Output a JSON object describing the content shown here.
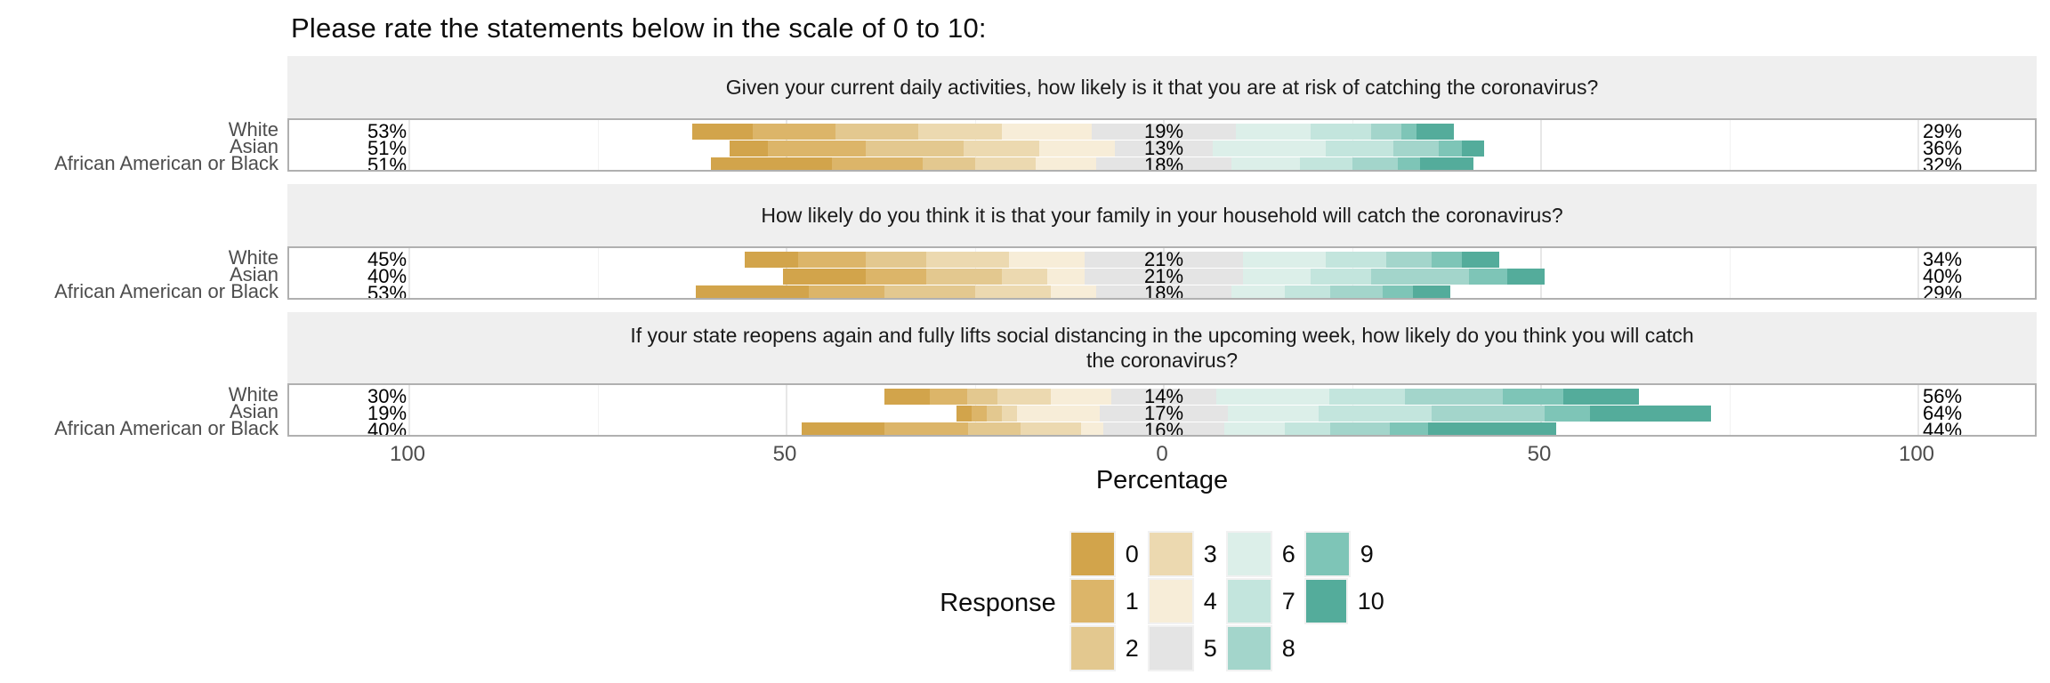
{
  "title": "Please rate the statements below in the scale of 0 to 10:",
  "x_axis": {
    "tick_labels": [
      "100",
      "50",
      "0",
      "50",
      "100"
    ],
    "label": "Percentage"
  },
  "legend": {
    "title": "Response",
    "items": [
      {
        "label": "0",
        "color": "#D2A44B"
      },
      {
        "label": "1",
        "color": "#DCB569"
      },
      {
        "label": "2",
        "color": "#E3C88F"
      },
      {
        "label": "3",
        "color": "#ECD9B0"
      },
      {
        "label": "4",
        "color": "#F7EDD8"
      },
      {
        "label": "5",
        "color": "#E4E4E4"
      },
      {
        "label": "6",
        "color": "#DCEFE9"
      },
      {
        "label": "7",
        "color": "#C3E5DD"
      },
      {
        "label": "8",
        "color": "#A3D5CB"
      },
      {
        "label": "9",
        "color": "#7EC5B7"
      },
      {
        "label": "10",
        "color": "#54AC9B"
      }
    ]
  },
  "chart_data": {
    "type": "bar",
    "subtype": "diverging_stacked_likert",
    "title": "Please rate the statements below in the scale of 0 to 10:",
    "xlabel": "Percentage",
    "x_ticks": [
      -100,
      -50,
      0,
      50,
      100
    ],
    "x_range": [
      -116,
      116
    ],
    "legend_position": "bottom",
    "response_levels": [
      "0",
      "1",
      "2",
      "3",
      "4",
      "5",
      "6",
      "7",
      "8",
      "9",
      "10"
    ],
    "neutral_level": "5",
    "groups": [
      "White",
      "Asian",
      "African American or Black"
    ],
    "note": "low = sum of responses 0-4, neutral = response 5 (split around zero), high = sum of responses 6-10; segments_est are per-response percentages estimated from bar segment widths",
    "panels": [
      {
        "question": "Given your current daily activities, how likely is it that you are at risk of catching the coronavirus?",
        "rows": [
          {
            "group": "White",
            "low": 53,
            "neutral": 19,
            "high": 29,
            "segments_est": [
              8,
              11,
              11,
              11,
              12,
              19,
              10,
              8,
              4,
              2,
              5
            ]
          },
          {
            "group": "Asian",
            "low": 51,
            "neutral": 13,
            "high": 36,
            "segments_est": [
              5,
              13,
              13,
              10,
              10,
              13,
              15,
              9,
              6,
              3,
              3
            ]
          },
          {
            "group": "African American or Black",
            "low": 51,
            "neutral": 18,
            "high": 32,
            "segments_est": [
              16,
              12,
              7,
              8,
              8,
              18,
              9,
              7,
              6,
              3,
              7
            ]
          }
        ]
      },
      {
        "question": "How likely do you think it is that your family in your household will catch the coronavirus?",
        "rows": [
          {
            "group": "White",
            "low": 45,
            "neutral": 21,
            "high": 34,
            "segments_est": [
              7,
              9,
              8,
              11,
              10,
              21,
              11,
              8,
              6,
              4,
              5
            ]
          },
          {
            "group": "Asian",
            "low": 40,
            "neutral": 21,
            "high": 40,
            "segments_est": [
              11,
              8,
              10,
              6,
              5,
              21,
              9,
              8,
              13,
              5,
              5
            ]
          },
          {
            "group": "African American or Black",
            "low": 53,
            "neutral": 18,
            "high": 29,
            "segments_est": [
              15,
              10,
              12,
              10,
              6,
              18,
              7,
              6,
              7,
              4,
              5
            ]
          }
        ]
      },
      {
        "question": "If your state reopens again and fully lifts social distancing in the upcoming week, how likely do you think you will catch the coronavirus?",
        "rows": [
          {
            "group": "White",
            "low": 30,
            "neutral": 14,
            "high": 56,
            "segments_est": [
              6,
              5,
              4,
              7,
              8,
              14,
              15,
              10,
              13,
              8,
              10
            ]
          },
          {
            "group": "Asian",
            "low": 19,
            "neutral": 17,
            "high": 64,
            "segments_est": [
              2,
              2,
              2,
              2,
              11,
              17,
              12,
              15,
              15,
              6,
              16
            ]
          },
          {
            "group": "African American or Black",
            "low": 40,
            "neutral": 16,
            "high": 44,
            "segments_est": [
              11,
              11,
              7,
              8,
              3,
              16,
              8,
              6,
              8,
              5,
              17
            ]
          }
        ]
      }
    ]
  }
}
